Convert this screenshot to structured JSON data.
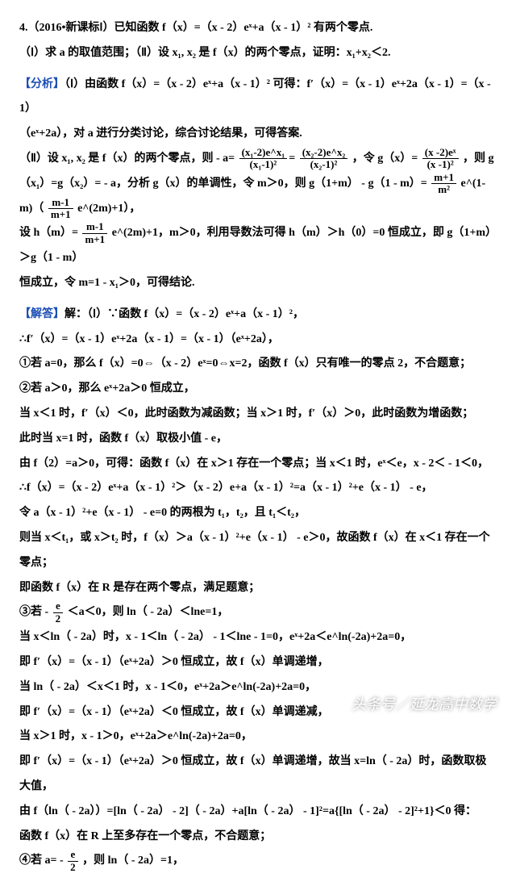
{
  "problem": {
    "number": "4.（2016•新课标Ⅰ）已知函数 f（x）=（x - 2）eˣ+a（x - 1）² 有两个零点.",
    "part1": "（Ⅰ）求 a 的取值范围；（Ⅱ）设 x₁, x₂ 是 f（x）的两个零点，证明：x₁+x₂＜2."
  },
  "analysis": {
    "label": "【分析】",
    "l1a": "（Ⅰ）由函数 f（x）=（x - 2）eˣ+a（x - 1）² 可得：f′（x）=（x - 1）eˣ+2a（x - 1）=（x - 1）",
    "l1b": "（eˣ+2a），对 a 进行分类讨论，综合讨论结果，可得答案.",
    "l2pre": "（Ⅱ）设 x₁, x₂ 是 f（x）的两个零点，则 - a=",
    "l2mid": "，令 g（x）=",
    "l2post": "，则 g",
    "f1n": "(x₁-2)e^x₁",
    "f1d": "(x₁-1)²",
    "f2n": "(x₂-2)e^x₂",
    "f2d": "(x₂-1)²",
    "f3n": "(x -2)eˣ",
    "f3d": "(x -1)²",
    "l3pre": "（x₁）=g（x₂）= - a，分析 g（x）的单调性，令 m＞0，则 g（1+m） - g（1 - m）=",
    "f4n": "m+1",
    "f4d": "m²",
    "l3mid": "e^(1-m)（",
    "f5n": "m-1",
    "f5d": "m+1",
    "l3post": "e^(2m)+1），",
    "l4pre": "设 h（m）=",
    "l4mid": "e^(2m)+1，m＞0，利用导数法可得 h（m）＞h（0）=0 恒成立，即 g（1+m）＞g（1 - m）",
    "l5": "恒成立，令 m=1 - x₁＞0，可得结论."
  },
  "solution": {
    "label": "【解答】",
    "l0": "解：（Ⅰ）∵函数 f（x）=（x - 2）eˣ+a（x - 1）²，",
    "l1": "∴f′（x）=（x - 1）eˣ+2a（x - 1）=（x - 1）（eˣ+2a），",
    "l2": "①若 a=0，那么 f（x）=0⇔（x - 2）eˣ=0⇔x=2，函数 f（x）只有唯一的零点 2，不合题意；",
    "l3": "②若 a＞0，那么 eˣ+2a＞0 恒成立，",
    "l4": "当 x＜1 时，f′（x）＜0，此时函数为减函数；当 x＞1 时，f′（x）＞0，此时函数为增函数；",
    "l5": "此时当 x=1 时，函数 f（x）取极小值 - e，",
    "l6": "由 f（2）=a＞0，可得：函数 f（x）在 x＞1 存在一个零点；当 x＜1 时，eˣ＜e，x - 2＜ - 1＜0，",
    "l7": "∴f（x）=（x - 2）eˣ+a（x - 1）²＞（x - 2）e+a（x - 1）²=a（x - 1）²+e（x - 1） - e，",
    "l8": "令 a（x - 1）²+e（x - 1） - e=0 的两根为 t₁，t₂，且 t₁＜t₂，",
    "l9": "则当 x＜t₁，或 x＞t₂ 时，f（x）＞a（x - 1）²+e（x - 1） - e＞0，故函数 f（x）在 x＜1 存在一个零点；",
    "l10": "即函数 f（x）在 R 是存在两个零点，满足题意；",
    "l11pre": "③若 - ",
    "fe2n": "e",
    "fe2d": "2",
    "l11post": "＜a＜0，则 ln（ - 2a）＜lne=1，",
    "l12": "当 x＜ln（ - 2a）时，x - 1＜ln（ - 2a） - 1＜lne - 1=0，eˣ+2a＜e^ln(-2a)+2a=0，",
    "l13": "即 f′（x）=（x - 1）（eˣ+2a）＞0 恒成立，故 f（x）单调递增，",
    "l14": "当 ln（ - 2a）＜x＜1 时，x - 1＜0，eˣ+2a＞e^ln(-2a)+2a=0，",
    "l15": "即 f′（x）=（x - 1）（eˣ+2a）＜0 恒成立，故 f（x）单调递减，",
    "l16": "当 x＞1 时，x - 1＞0，eˣ+2a＞e^ln(-2a)+2a=0，",
    "l17": "即 f′（x）=（x - 1）（eˣ+2a）＞0 恒成立，故 f（x）单调递增，故当 x=ln（ - 2a）时，函数取极大值，",
    "l18": "由 f（ln（ - 2a））=[ln（ - 2a） - 2]（ - 2a）+a[ln（ - 2a） - 1]²=a{[ln（ - 2a） - 2]²+1}＜0 得：",
    "l19": "函数 f（x）在 R 上至多存在一个零点，不合题意；",
    "l20pre": "④若 a= - ",
    "l20post": "，则 ln（ - 2a）=1，"
  },
  "watermark": "头条号／延龙高中数学"
}
